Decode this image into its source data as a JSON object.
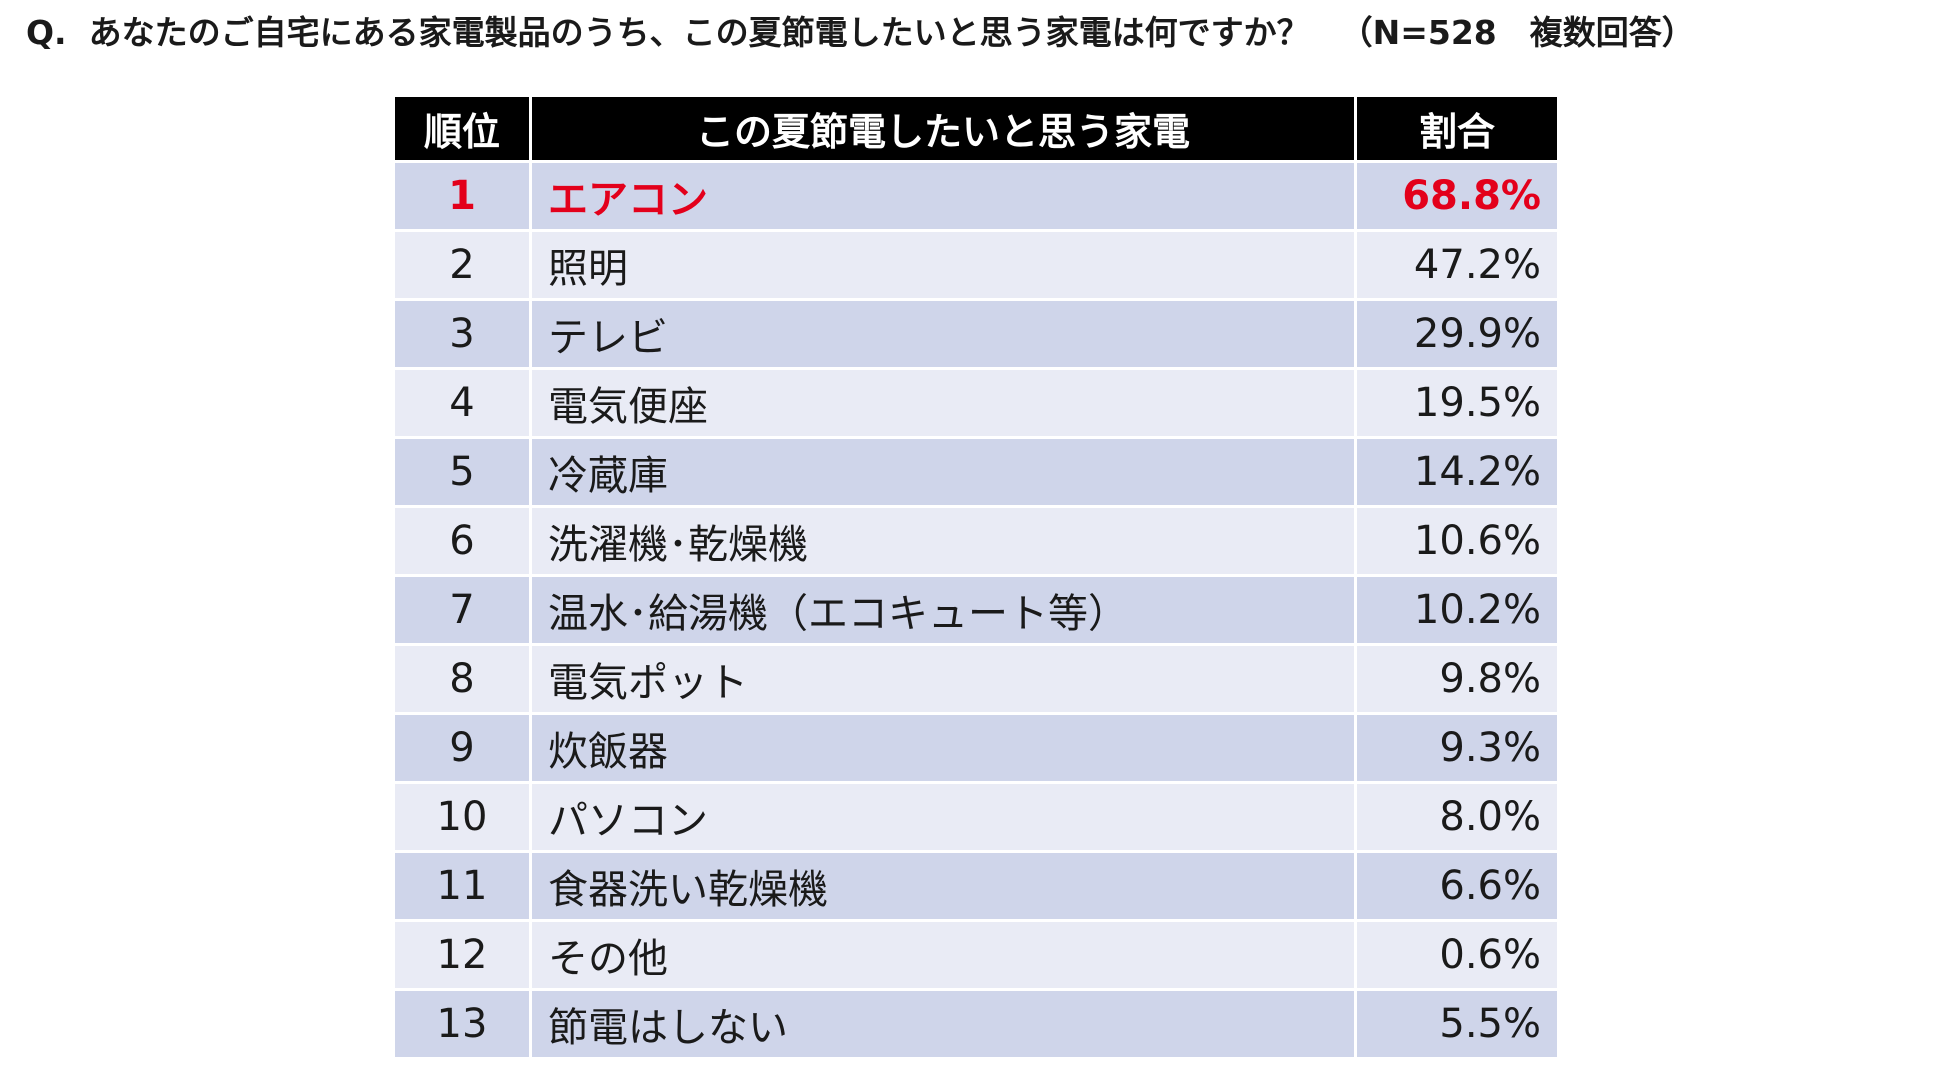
{
  "question": {
    "prefix": "Q.",
    "text": "あなたのご自宅にある家電製品のうち、この夏節電したいと思う家電は何ですか？",
    "note": "（N=528　複数回答）"
  },
  "table": {
    "headers": {
      "rank": "順位",
      "item": "この夏節電したいと思う家電",
      "pct": "割合"
    },
    "highlight_color": "#e3001b",
    "row_colors": [
      "#cfd5ea",
      "#e9ebf5"
    ],
    "header_color": "#000000"
  },
  "chart_data": {
    "type": "table",
    "columns": [
      "順位",
      "この夏節電したいと思う家電",
      "割合"
    ],
    "rows": [
      {
        "rank": "1",
        "item": "エアコン",
        "pct": "68.8%",
        "value": 68.8,
        "highlight": true
      },
      {
        "rank": "2",
        "item": "照明",
        "pct": "47.2%",
        "value": 47.2
      },
      {
        "rank": "3",
        "item": "テレビ",
        "pct": "29.9%",
        "value": 29.9
      },
      {
        "rank": "4",
        "item": "電気便座",
        "pct": "19.5%",
        "value": 19.5
      },
      {
        "rank": "5",
        "item": "冷蔵庫",
        "pct": "14.2%",
        "value": 14.2
      },
      {
        "rank": "6",
        "item": "洗濯機･乾燥機",
        "pct": "10.6%",
        "value": 10.6
      },
      {
        "rank": "7",
        "item": "温水･給湯機（エコキュート等）",
        "pct": "10.2%",
        "value": 10.2
      },
      {
        "rank": "8",
        "item": "電気ポット",
        "pct": "9.8%",
        "value": 9.8
      },
      {
        "rank": "9",
        "item": "炊飯器",
        "pct": "9.3%",
        "value": 9.3
      },
      {
        "rank": "10",
        "item": "パソコン",
        "pct": "8.0%",
        "value": 8.0
      },
      {
        "rank": "11",
        "item": "食器洗い乾燥機",
        "pct": "6.6%",
        "value": 6.6
      },
      {
        "rank": "12",
        "item": "その他",
        "pct": "0.6%",
        "value": 0.6
      },
      {
        "rank": "13",
        "item": "節電はしない",
        "pct": "5.5%",
        "value": 5.5
      }
    ]
  }
}
